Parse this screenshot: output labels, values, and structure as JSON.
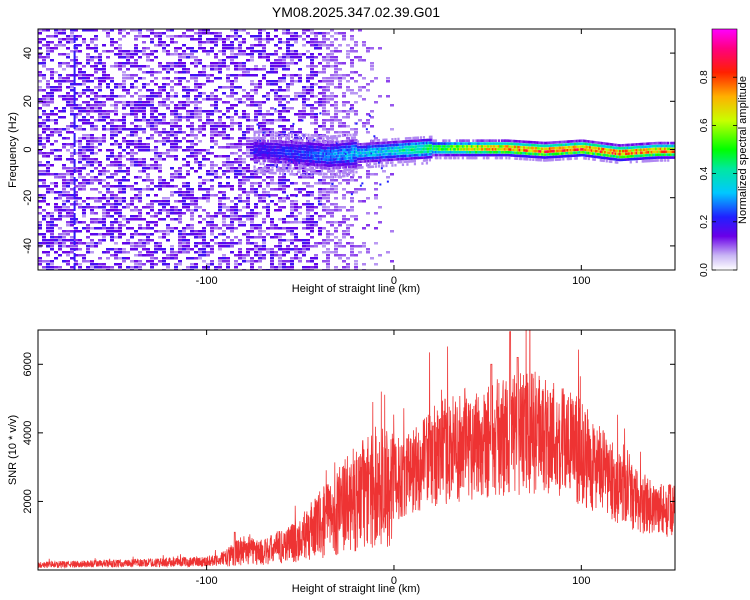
{
  "figure": {
    "title": "YM08.2025.347.02.39.G01"
  },
  "chart_data": [
    {
      "type": "heatmap",
      "panel": "top",
      "title": "",
      "xlabel": "Height of straight line (km)",
      "ylabel": "Frequency (Hz)",
      "xlim": [
        -190,
        150
      ],
      "ylim": [
        -50,
        50
      ],
      "x_ticks": [
        -100,
        0,
        100
      ],
      "y_ticks": [
        -40,
        -20,
        0,
        20,
        40
      ],
      "grid": false,
      "colormap": "hsv-like (violet-blue-cyan-green-yellow-red-magenta)",
      "colorbar": {
        "label": "Normalized spectral amplitude",
        "range": [
          0,
          1
        ],
        "ticks": [
          0.0,
          0.2,
          0.4,
          0.6,
          0.8
        ],
        "tick_labels": [
          "0.0",
          "0.2",
          "0.4",
          "0.6",
          "0.8"
        ],
        "position": "right"
      },
      "description_points": {
        "ridge_x": [
          -70,
          -50,
          -35,
          -20,
          0,
          20,
          40,
          60,
          80,
          100,
          120,
          140,
          150
        ],
        "ridge_freq": [
          0,
          -1,
          -2,
          -1,
          0,
          1,
          1,
          1,
          0,
          1,
          -1,
          0,
          0
        ],
        "ridge_amplitude": [
          0.2,
          0.25,
          0.3,
          0.35,
          0.4,
          0.5,
          0.7,
          0.8,
          0.85,
          0.85,
          0.85,
          0.8,
          0.8
        ],
        "noise_region_xlim": [
          -190,
          -30
        ],
        "noise_amplitude": 0.1
      },
      "colors": {
        "noise_dark": "#7a3ff0",
        "noise_light": "#d6c6f7"
      }
    },
    {
      "type": "line",
      "panel": "bottom",
      "title": "",
      "xlabel": "Height of straight line (km)",
      "ylabel": "SNR (10 * v/v)",
      "xlim": [
        -190,
        150
      ],
      "ylim": [
        0,
        7000
      ],
      "x_ticks": [
        -100,
        0,
        100
      ],
      "y_ticks": [
        2000,
        4000,
        6000
      ],
      "grid": false,
      "series": [
        {
          "color": "#ee3333",
          "envelope_x": [
            -190,
            -140,
            -100,
            -90,
            -80,
            -70,
            -60,
            -50,
            -40,
            -30,
            -20,
            -10,
            0,
            10,
            20,
            30,
            40,
            50,
            60,
            70,
            80,
            90,
            100,
            110,
            120,
            130,
            140,
            150
          ],
          "envelope_mean": [
            150,
            200,
            250,
            350,
            600,
            500,
            700,
            900,
            1300,
            1700,
            2100,
            2400,
            2600,
            2900,
            3300,
            3500,
            3700,
            3800,
            3900,
            4000,
            4000,
            3800,
            3400,
            2900,
            2400,
            2000,
            1800,
            1700
          ],
          "peaks": [
            {
              "x": -85,
              "y": 1100
            },
            {
              "x": -13,
              "y": 2800
            },
            {
              "x": 6,
              "y": 3300
            },
            {
              "x": 17,
              "y": 3900
            },
            {
              "x": 21,
              "y": 4200
            },
            {
              "x": 52,
              "y": 6000
            },
            {
              "x": 62,
              "y": 6950
            },
            {
              "x": 66,
              "y": 6200
            }
          ]
        }
      ]
    }
  ]
}
